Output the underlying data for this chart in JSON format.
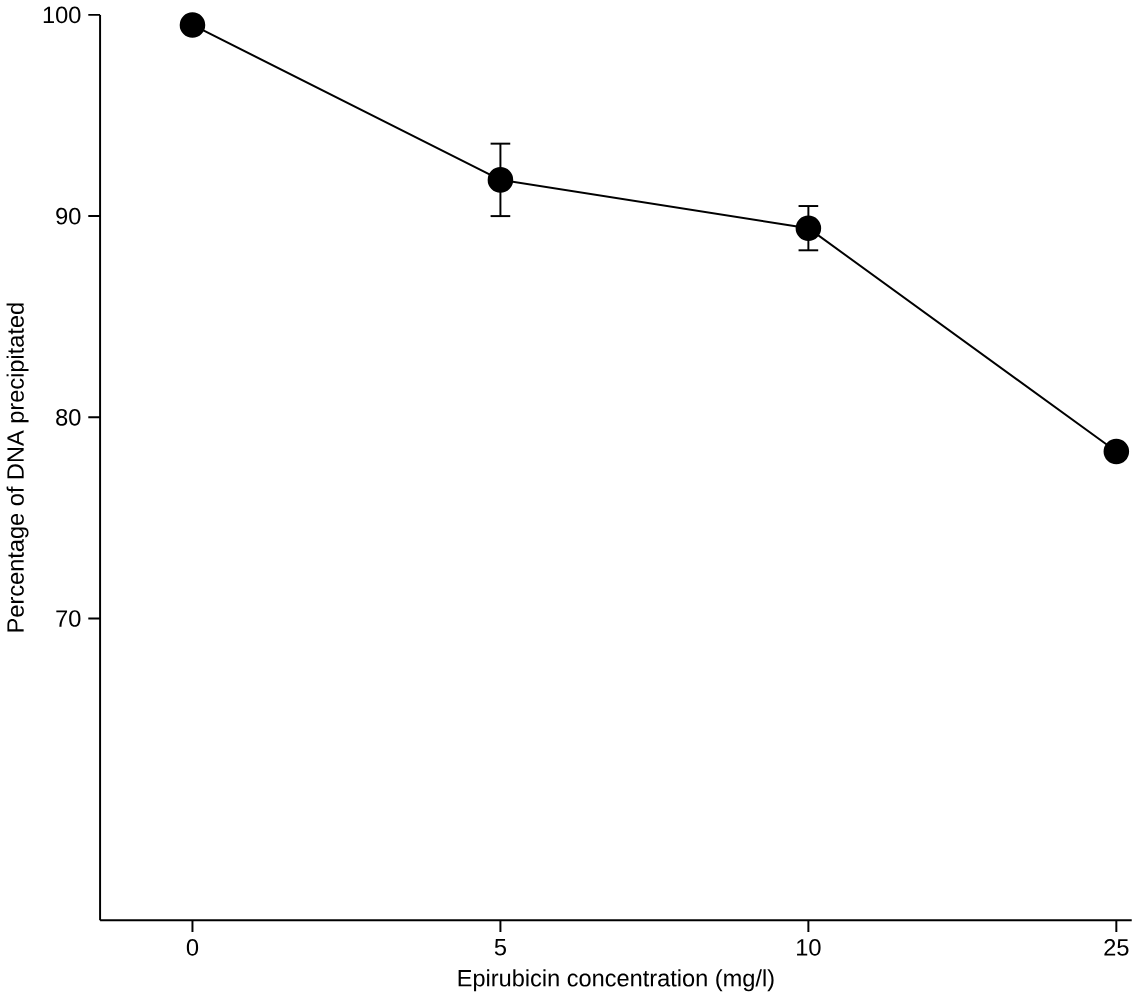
{
  "chart_data": {
    "type": "line",
    "xlabel": "Epirubicin concentration (mg/l)",
    "ylabel": "Percentage of DNA precipitated",
    "categories": [
      "0",
      "5",
      "10",
      "25"
    ],
    "values": [
      99.5,
      91.8,
      89.4,
      78.3
    ],
    "errors": [
      null,
      1.8,
      1.1,
      null
    ],
    "color": "#000000",
    "marker": "circle",
    "line_style": "solid",
    "ylim": [
      55,
      100
    ],
    "yticks": [
      70,
      80,
      90,
      100
    ]
  }
}
